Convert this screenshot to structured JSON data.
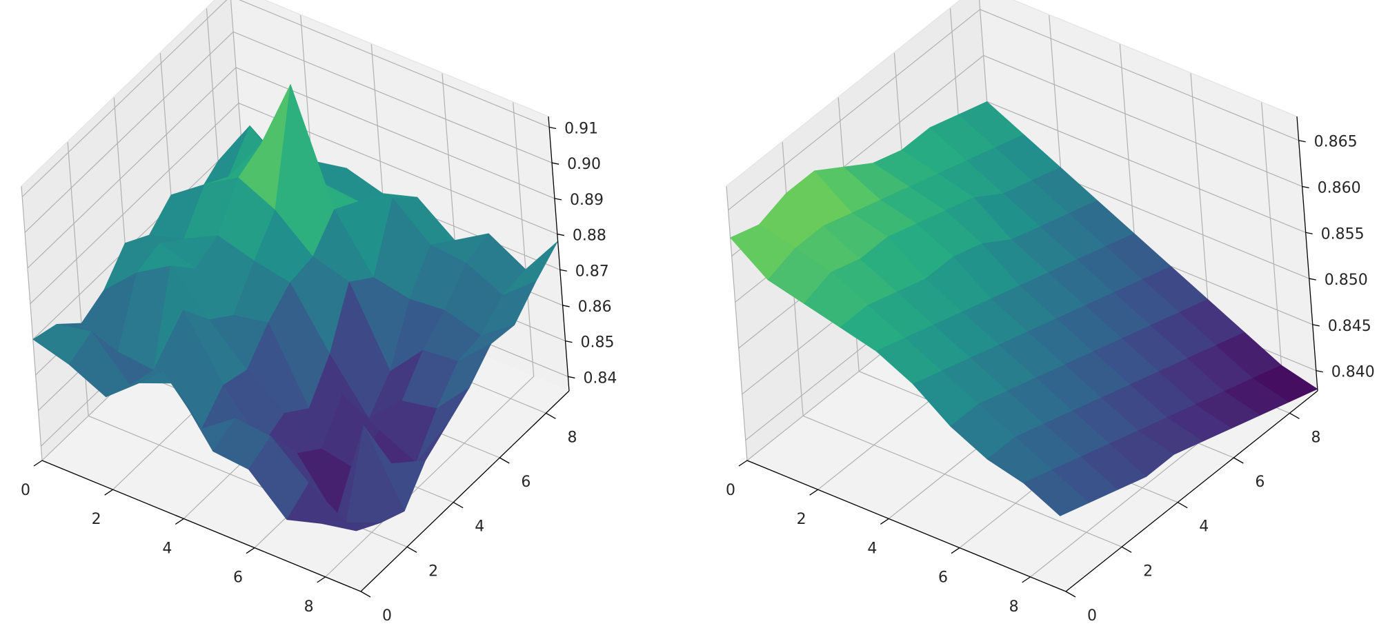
{
  "chart_data": [
    {
      "type": "surface3d",
      "colormap": "viridis",
      "grid": true,
      "x": [
        0,
        1,
        2,
        3,
        4,
        5,
        6,
        7,
        8,
        9
      ],
      "y": [
        0,
        1,
        2,
        3,
        4,
        5,
        6,
        7,
        8,
        9
      ],
      "x_ticks": [
        "0",
        "2",
        "4",
        "6",
        "8"
      ],
      "y_ticks": [
        "0",
        "2",
        "4",
        "6",
        "8"
      ],
      "z_ticks": [
        "0.84",
        "0.85",
        "0.86",
        "0.87",
        "0.88",
        "0.89",
        "0.90",
        "0.91"
      ],
      "xlim": [
        0,
        9
      ],
      "ylim": [
        0,
        9
      ],
      "zlim": [
        0.836,
        0.913
      ],
      "z": [
        [
          0.87,
          0.868,
          0.862,
          0.865,
          0.872,
          0.868,
          0.873,
          0.866,
          0.87,
          0.871
        ],
        [
          0.867,
          0.87,
          0.858,
          0.874,
          0.876,
          0.871,
          0.88,
          0.876,
          0.884,
          0.869
        ],
        [
          0.862,
          0.859,
          0.857,
          0.88,
          0.873,
          0.876,
          0.886,
          0.889,
          0.874,
          0.872
        ],
        [
          0.87,
          0.867,
          0.878,
          0.869,
          0.864,
          0.873,
          0.881,
          0.91,
          0.876,
          0.874
        ],
        [
          0.874,
          0.855,
          0.861,
          0.859,
          0.866,
          0.871,
          0.872,
          0.879,
          0.875,
          0.871
        ],
        [
          0.859,
          0.862,
          0.848,
          0.851,
          0.846,
          0.855,
          0.869,
          0.864,
          0.88,
          0.874
        ],
        [
          0.858,
          0.861,
          0.85,
          0.845,
          0.854,
          0.841,
          0.848,
          0.862,
          0.871,
          0.866
        ],
        [
          0.848,
          0.852,
          0.836,
          0.843,
          0.848,
          0.85,
          0.858,
          0.863,
          0.87,
          0.872
        ],
        [
          0.851,
          0.845,
          0.866,
          0.849,
          0.843,
          0.852,
          0.859,
          0.86,
          0.865,
          0.866
        ],
        [
          0.853,
          0.849,
          0.846,
          0.854,
          0.858,
          0.862,
          0.868,
          0.867,
          0.873,
          0.878
        ]
      ]
    },
    {
      "type": "surface3d",
      "colormap": "viridis",
      "grid": true,
      "x": [
        0,
        1,
        2,
        3,
        4,
        5,
        6,
        7,
        8,
        9
      ],
      "y": [
        0,
        1,
        2,
        3,
        4,
        5,
        6,
        7,
        8,
        9
      ],
      "x_ticks": [
        "0",
        "2",
        "4",
        "6",
        "8"
      ],
      "y_ticks": [
        "0",
        "2",
        "4",
        "6",
        "8"
      ],
      "z_ticks": [
        "0.840",
        "0.845",
        "0.850",
        "0.855",
        "0.860",
        "0.865"
      ],
      "xlim": [
        0,
        9
      ],
      "ylim": [
        0,
        9
      ],
      "zlim": [
        0.8378,
        0.8676
      ],
      "z": [
        [
          0.862,
          0.861,
          0.862,
          0.862,
          0.86,
          0.858,
          0.857,
          0.857,
          0.856,
          0.855
        ],
        [
          0.859,
          0.86,
          0.86,
          0.859,
          0.858,
          0.857,
          0.856,
          0.855,
          0.854,
          0.853
        ],
        [
          0.858,
          0.859,
          0.858,
          0.858,
          0.857,
          0.856,
          0.855,
          0.853,
          0.852,
          0.851
        ],
        [
          0.857,
          0.857,
          0.856,
          0.855,
          0.855,
          0.854,
          0.852,
          0.851,
          0.85,
          0.849
        ],
        [
          0.856,
          0.855,
          0.854,
          0.853,
          0.852,
          0.851,
          0.85,
          0.849,
          0.848,
          0.847
        ],
        [
          0.854,
          0.853,
          0.852,
          0.851,
          0.85,
          0.849,
          0.848,
          0.847,
          0.846,
          0.845
        ],
        [
          0.851,
          0.851,
          0.85,
          0.849,
          0.848,
          0.847,
          0.846,
          0.845,
          0.844,
          0.843
        ],
        [
          0.849,
          0.849,
          0.848,
          0.847,
          0.846,
          0.845,
          0.844,
          0.843,
          0.842,
          0.841
        ],
        [
          0.848,
          0.847,
          0.846,
          0.845,
          0.844,
          0.843,
          0.842,
          0.841,
          0.84,
          0.839
        ],
        [
          0.846,
          0.845,
          0.844,
          0.843,
          0.843,
          0.842,
          0.841,
          0.84,
          0.839,
          0.838
        ]
      ]
    }
  ]
}
